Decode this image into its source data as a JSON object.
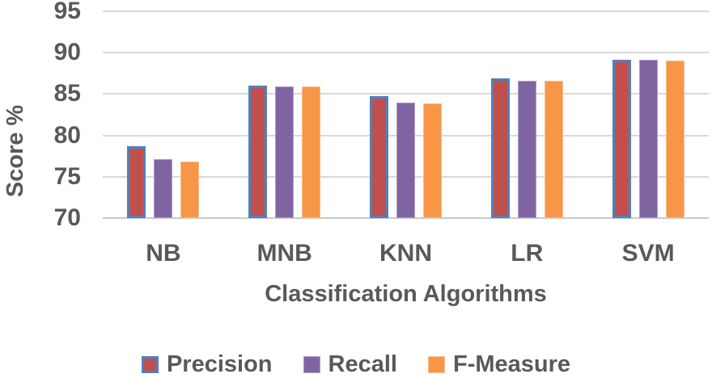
{
  "chart_data": {
    "type": "bar",
    "title": "",
    "categories": [
      "NB",
      "MNB",
      "KNN",
      "LR",
      "SVM"
    ],
    "series": [
      {
        "name": "Precision",
        "color": "#C0504D",
        "border_color": "#4F81BD",
        "border_width": 3,
        "values": [
          78.7,
          86.0,
          84.7,
          86.9,
          89.1
        ]
      },
      {
        "name": "Recall",
        "color": "#8064A2",
        "border_color": "#AD9FC6",
        "border_width": 1,
        "values": [
          77.1,
          85.9,
          84.0,
          86.6,
          89.1
        ]
      },
      {
        "name": "F-Measure",
        "color": "#F79646",
        "border_color": "#FBBE8E",
        "border_width": 1,
        "values": [
          76.8,
          85.9,
          83.9,
          86.6,
          89.0
        ]
      }
    ],
    "xlabel": "Classification Algorithms",
    "ylabel": "Score %",
    "ylim": [
      70,
      95
    ],
    "yticks": [
      70,
      75,
      80,
      85,
      90,
      95
    ],
    "grid": true,
    "legend_position": "bottom",
    "text_color": "#595959",
    "gridline_color": "#D9D9D9",
    "axisline_color": "#C9C9C9"
  }
}
